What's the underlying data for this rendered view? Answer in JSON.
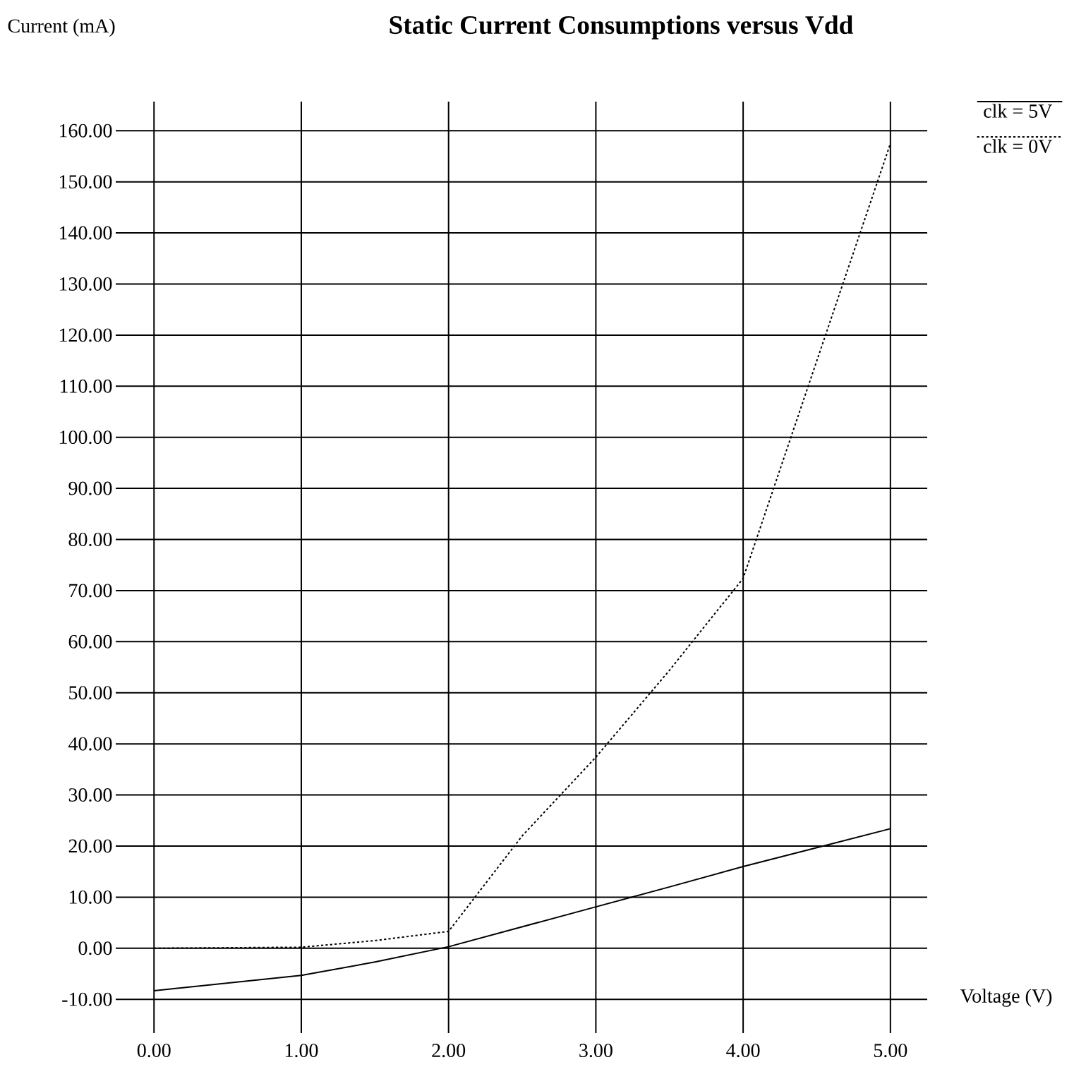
{
  "chart_data": {
    "type": "line",
    "title": "Static Current Consumptions versus Vdd",
    "xlabel": "Voltage (V)",
    "ylabel": "Current (mA)",
    "xlim": [
      -0.26,
      5.25
    ],
    "ylim": [
      -16.6,
      165.7
    ],
    "xticks": [
      {
        "value": 0,
        "label": "0.00"
      },
      {
        "value": 1,
        "label": "1.00"
      },
      {
        "value": 2,
        "label": "2.00"
      },
      {
        "value": 3,
        "label": "3.00"
      },
      {
        "value": 4,
        "label": "4.00"
      },
      {
        "value": 5,
        "label": "5.00"
      }
    ],
    "yticks": [
      {
        "value": -10,
        "label": "-10.00"
      },
      {
        "value": 0,
        "label": "0.00"
      },
      {
        "value": 10,
        "label": "10.00"
      },
      {
        "value": 20,
        "label": "20.00"
      },
      {
        "value": 30,
        "label": "30.00"
      },
      {
        "value": 40,
        "label": "40.00"
      },
      {
        "value": 50,
        "label": "50.00"
      },
      {
        "value": 60,
        "label": "60.00"
      },
      {
        "value": 70,
        "label": "70.00"
      },
      {
        "value": 80,
        "label": "80.00"
      },
      {
        "value": 90,
        "label": "90.00"
      },
      {
        "value": 100,
        "label": "100.00"
      },
      {
        "value": 110,
        "label": "110.00"
      },
      {
        "value": 120,
        "label": "120.00"
      },
      {
        "value": 130,
        "label": "130.00"
      },
      {
        "value": 140,
        "label": "140.00"
      },
      {
        "value": 150,
        "label": "150.00"
      },
      {
        "value": 160,
        "label": "160.00"
      }
    ],
    "grid": true,
    "legend": "top right",
    "marker": "none",
    "series": [
      {
        "name": "clk = 5V",
        "color": "#000000",
        "line_style": "solid",
        "x": [
          0,
          1,
          1.5,
          2,
          2.5,
          3,
          3.5,
          4,
          4.5,
          5
        ],
        "values": [
          -8.3,
          -5.3,
          -2.7,
          0.3,
          4.2,
          8.1,
          12.0,
          16.0,
          19.7,
          23.4
        ]
      },
      {
        "name": "clk = 0V",
        "color": "#000000",
        "line_style": "dotted",
        "x": [
          0,
          1,
          1.5,
          2,
          2.5,
          3,
          3.5,
          4,
          5
        ],
        "values": [
          0.0,
          0.2,
          1.5,
          3.3,
          22,
          37.4,
          54.4,
          72.4,
          157.5
        ]
      }
    ]
  }
}
